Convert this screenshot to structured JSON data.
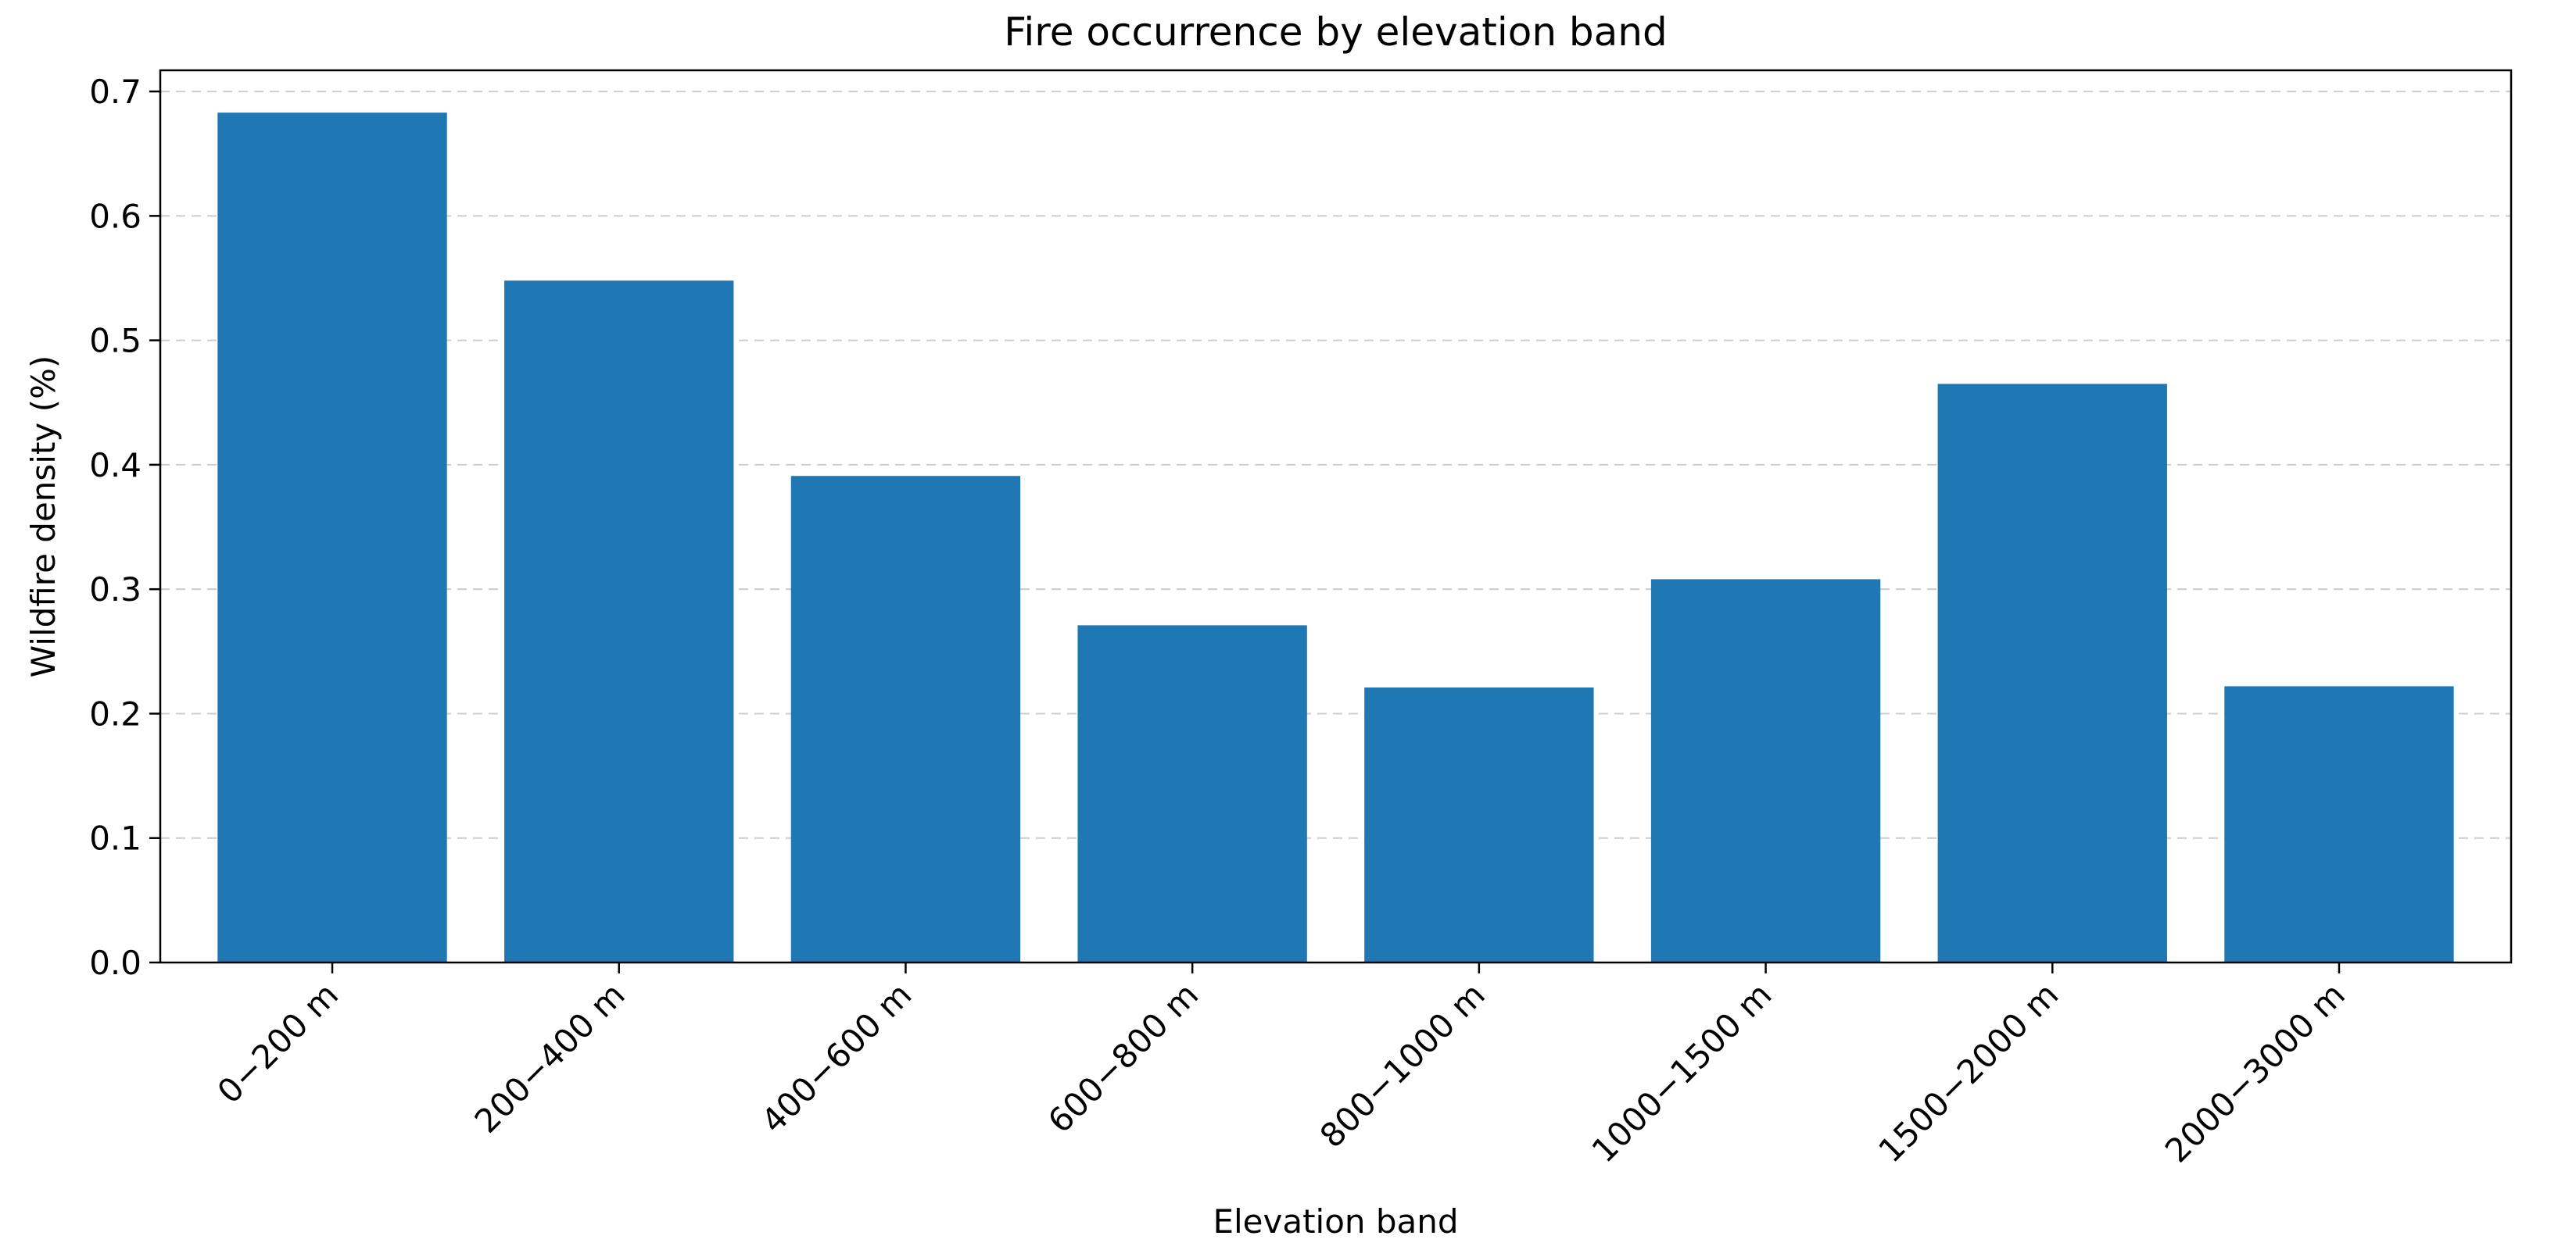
{
  "chart_data": {
    "type": "bar",
    "title": "Fire occurrence by elevation band",
    "xlabel": "Elevation band",
    "ylabel": "Wildfire density (%)",
    "categories": [
      "0−200 m",
      "200−400 m",
      "400−600 m",
      "600−800 m",
      "800−1000 m",
      "1000−1500 m",
      "1500−2000 m",
      "2000−3000 m"
    ],
    "values": [
      0.683,
      0.548,
      0.391,
      0.271,
      0.221,
      0.308,
      0.465,
      0.222
    ],
    "ylim": [
      0,
      0.717
    ],
    "yticks": [
      0.0,
      0.1,
      0.2,
      0.3,
      0.4,
      0.5,
      0.6,
      0.7
    ],
    "ytick_labels": [
      "0.0",
      "0.1",
      "0.2",
      "0.3",
      "0.4",
      "0.5",
      "0.6",
      "0.7"
    ],
    "grid": "y-dashed",
    "bar_color": "#1f77b4"
  }
}
